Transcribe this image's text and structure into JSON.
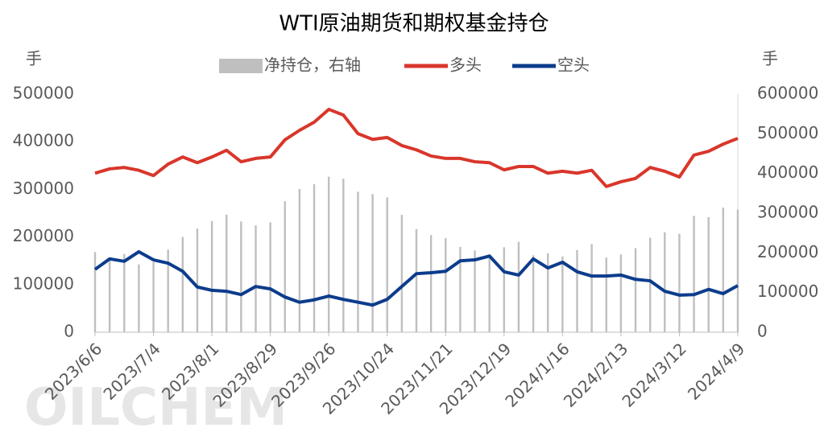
{
  "chart_data": {
    "type": "line",
    "title": "WTI原油期货和期权基金持仓",
    "ylabel": "手",
    "y2label": "手",
    "watermark": "OILCHEM",
    "categories": [
      "2023/6/6",
      null,
      null,
      null,
      "2023/7/4",
      null,
      null,
      null,
      "2023/8/1",
      null,
      null,
      null,
      "2023/8/29",
      null,
      null,
      null,
      "2023/9/26",
      null,
      null,
      null,
      "2023/10/24",
      null,
      null,
      null,
      "2023/11/21",
      null,
      null,
      null,
      "2023/12/19",
      null,
      null,
      null,
      "2024/1/16",
      null,
      null,
      null,
      "2024/2/13",
      null,
      null,
      null,
      "2024/3/12",
      null,
      null,
      null,
      "2024/4/9"
    ],
    "series": [
      {
        "name": "净持仓，右轴",
        "type": "bar",
        "axis": "y2",
        "color": "#bfbfbf",
        "values": [
          202000,
          189000,
          197000,
          171000,
          177000,
          208000,
          240000,
          261000,
          280000,
          296000,
          279000,
          269000,
          277000,
          330000,
          361000,
          373000,
          392000,
          387000,
          354000,
          348000,
          340000,
          296000,
          260000,
          245000,
          237000,
          215000,
          206000,
          196000,
          214000,
          228000,
          194000,
          199000,
          191000,
          207000,
          222000,
          188000,
          196000,
          212000,
          238000,
          252000,
          248000,
          293000,
          290000,
          314000,
          309000
        ]
      },
      {
        "name": "多头",
        "type": "line",
        "color": "#d9362b",
        "values": [
          334000,
          343000,
          346000,
          340000,
          329000,
          353000,
          368000,
          356000,
          368000,
          382000,
          358000,
          365000,
          368000,
          404000,
          424000,
          441000,
          468000,
          456000,
          417000,
          405000,
          409000,
          392000,
          383000,
          370000,
          365000,
          365000,
          358000,
          356000,
          341000,
          348000,
          348000,
          334000,
          338000,
          334000,
          340000,
          306000,
          316000,
          323000,
          346000,
          338000,
          326000,
          372000,
          380000,
          395000,
          407000
        ]
      },
      {
        "name": "空头",
        "type": "line",
        "color": "#0c3c8c",
        "values": [
          132000,
          154000,
          149000,
          169000,
          152000,
          145000,
          128000,
          95000,
          88000,
          86000,
          79000,
          96000,
          91000,
          74000,
          63000,
          68000,
          76000,
          69000,
          63000,
          57000,
          69000,
          96000,
          123000,
          125000,
          128000,
          150000,
          152000,
          160000,
          127000,
          120000,
          154000,
          135000,
          147000,
          127000,
          118000,
          118000,
          120000,
          111000,
          108000,
          86000,
          78000,
          79000,
          90000,
          81000,
          98000
        ]
      }
    ],
    "ylim": [
      0,
      500000
    ],
    "yticks": [
      0,
      100000,
      200000,
      300000,
      400000,
      500000
    ],
    "y2lim": [
      0,
      600000
    ],
    "y2ticks": [
      0,
      100000,
      200000,
      300000,
      400000,
      500000,
      600000
    ],
    "legend": "top",
    "grid": false
  }
}
